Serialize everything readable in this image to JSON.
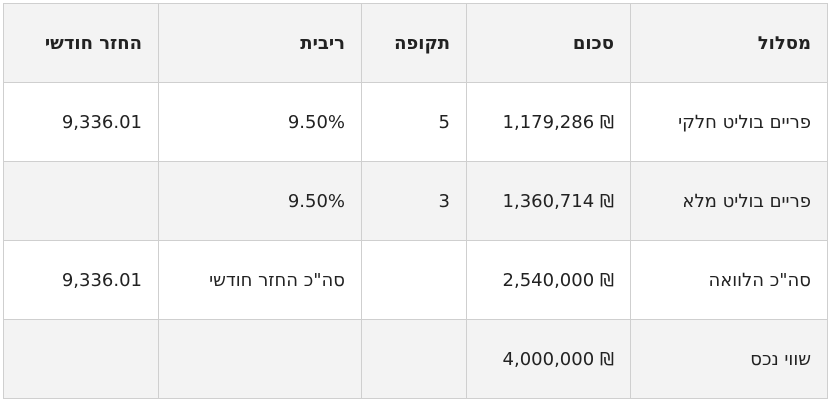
{
  "table": {
    "headers": {
      "track": "מסלול",
      "amount": "סכום",
      "period": "תקופה",
      "interest": "ריבית",
      "monthly": "החזר חודשי"
    },
    "rows": [
      {
        "track": "פריים בוליט חלקי",
        "amount": "₪ 1,179,286",
        "period": "5",
        "interest": "9.50%",
        "monthly": "9,336.01"
      },
      {
        "track": "פריים בוליט מלא",
        "amount": "₪ 1,360,714",
        "period": "3",
        "interest": "9.50%",
        "monthly": ""
      },
      {
        "track": "סה\"כ הלוואה",
        "amount": "₪ 2,540,000",
        "period": "",
        "interest": "סה\"כ החזר חודשי",
        "monthly": "9,336.01"
      },
      {
        "track": "שווי נכס",
        "amount": "₪ 4,000,000",
        "period": "",
        "interest": "",
        "monthly": ""
      }
    ]
  }
}
